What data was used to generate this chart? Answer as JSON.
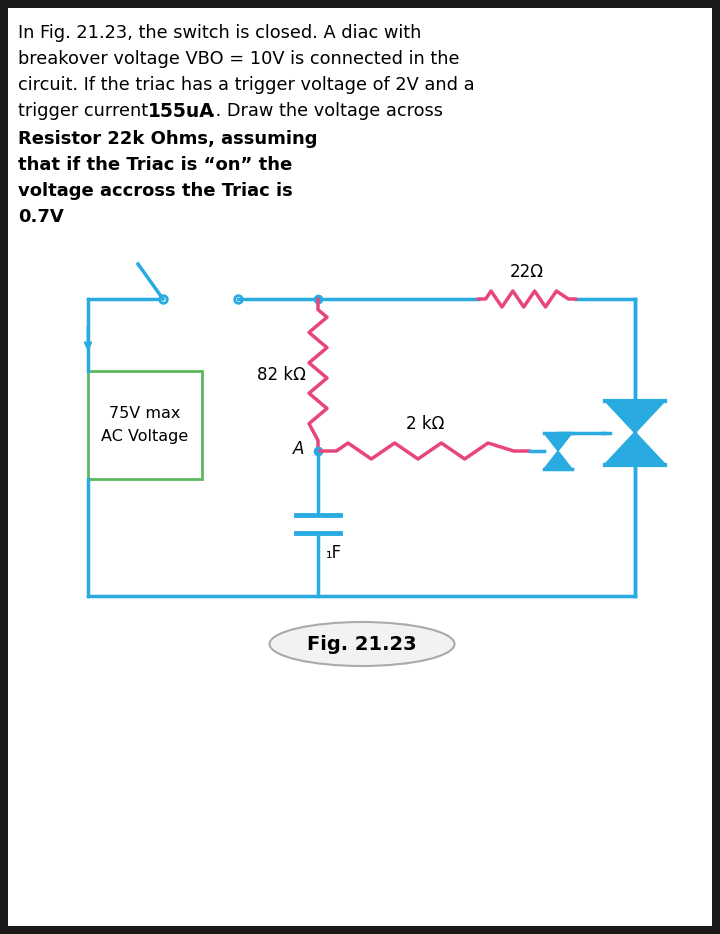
{
  "bg_color": "#ffffff",
  "outer_bg": "#1a1a1a",
  "text_line1": "In Fig. 21.23, the switch is closed. A diac with",
  "text_line2": "breakover voltage VBO = 10V is connected in the",
  "text_line3": "circuit. If the triac has a trigger voltage of 2V and a",
  "text_line4_normal": "trigger current    ",
  "text_line4_bold": "155uA",
  "text_line4_end": ".. Draw the voltage across",
  "bold_text_lines": [
    "Resistor 22k Ohms, assuming",
    "that if the Triac is “on” the",
    "voltage accross the Triac is",
    "0.7V"
  ],
  "fig_label": "Fig. 21.23",
  "label_82k": "82 kΩ",
  "label_2k": "2 kΩ",
  "label_22": "22Ω",
  "label_A": "A",
  "label_1uF": "₁F",
  "label_75V": "75V max",
  "label_AC": "AC Voltage",
  "wire_color": "#29abe2",
  "resistor_color_pink": "#e8457a",
  "source_box_color": "#5cb85c"
}
